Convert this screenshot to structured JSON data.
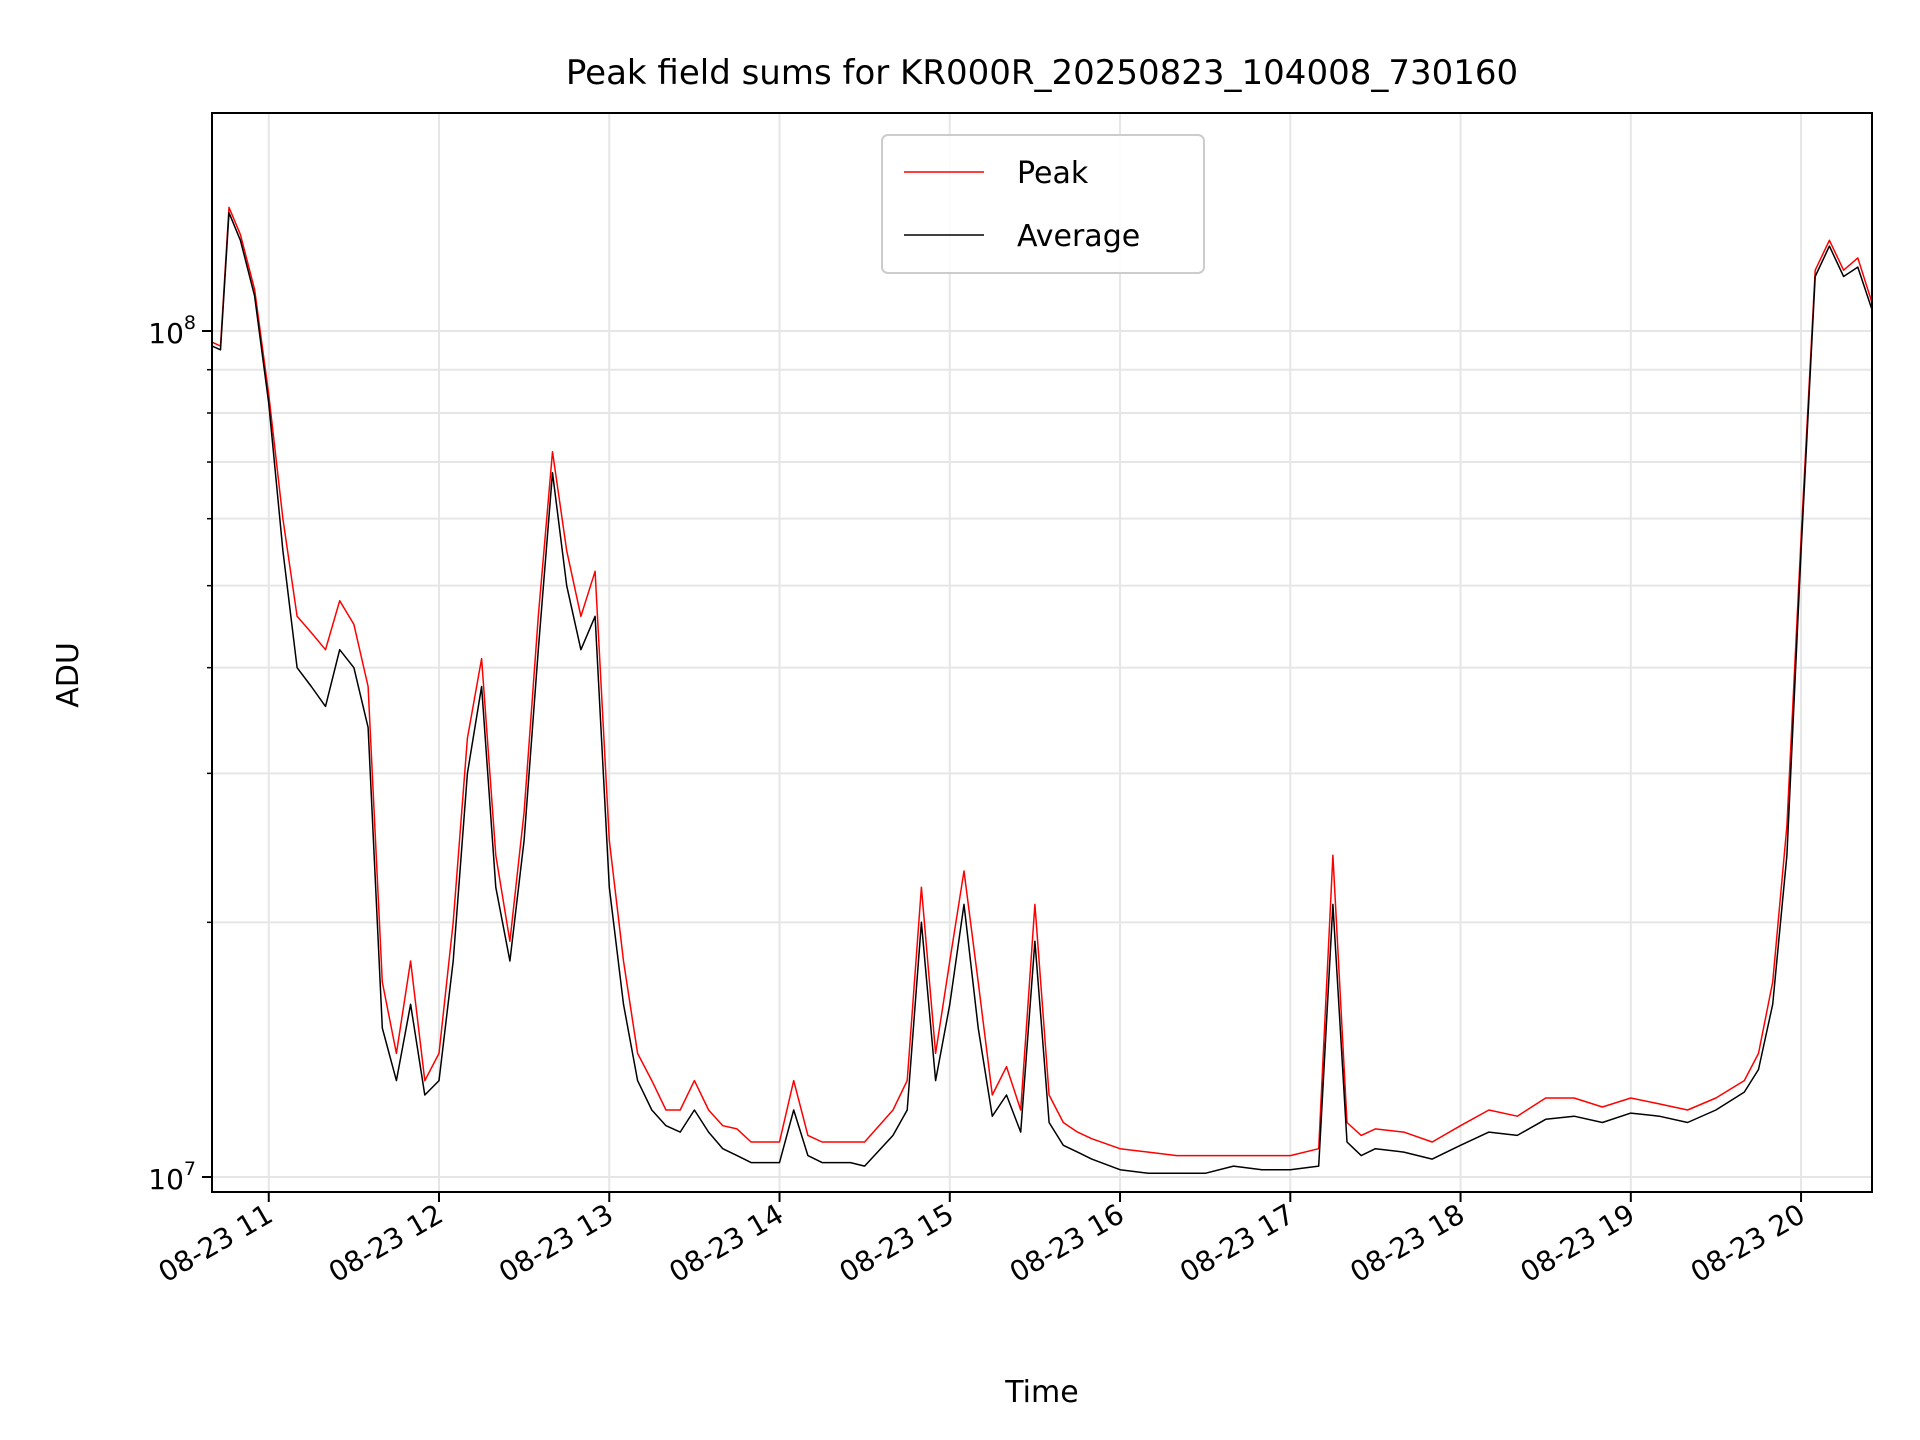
{
  "chart_data": {
    "type": "line",
    "title": "Peak field sums for KR000R_20250823_104008_730160",
    "xlabel": "Time",
    "ylabel": "ADU",
    "yscale": "log",
    "ylim": [
      9600000,
      181000000
    ],
    "xlim": [
      "2025-08-23 10:40",
      "2025-08-23 20:25"
    ],
    "x_ticks": [
      "08-23 11",
      "08-23 12",
      "08-23 13",
      "08-23 14",
      "08-23 15",
      "08-23 16",
      "08-23 17",
      "08-23 18",
      "08-23 19",
      "08-23 20"
    ],
    "y_ticks": [
      {
        "value": 10000000,
        "base": "10",
        "exp": "7"
      },
      {
        "value": 100000000,
        "base": "10",
        "exp": "8"
      }
    ],
    "grid": true,
    "legend_position": "top-center",
    "x": [
      "10:40",
      "10:43",
      "10:46",
      "10:50",
      "10:55",
      "11:00",
      "11:05",
      "11:10",
      "11:15",
      "11:20",
      "11:25",
      "11:30",
      "11:35",
      "11:40",
      "11:45",
      "11:50",
      "11:55",
      "12:00",
      "12:05",
      "12:10",
      "12:15",
      "12:20",
      "12:25",
      "12:30",
      "12:35",
      "12:40",
      "12:45",
      "12:50",
      "12:55",
      "13:00",
      "13:05",
      "13:10",
      "13:15",
      "13:20",
      "13:25",
      "13:30",
      "13:35",
      "13:40",
      "13:45",
      "13:50",
      "14:00",
      "14:05",
      "14:10",
      "14:15",
      "14:20",
      "14:25",
      "14:30",
      "14:40",
      "14:45",
      "14:50",
      "14:55",
      "15:00",
      "15:05",
      "15:10",
      "15:15",
      "15:20",
      "15:25",
      "15:30",
      "15:35",
      "15:40",
      "15:45",
      "15:50",
      "16:00",
      "16:10",
      "16:20",
      "16:30",
      "16:40",
      "16:50",
      "17:00",
      "17:10",
      "17:15",
      "17:20",
      "17:25",
      "17:30",
      "17:40",
      "17:50",
      "18:00",
      "18:10",
      "18:20",
      "18:30",
      "18:40",
      "18:50",
      "19:00",
      "19:10",
      "19:20",
      "19:30",
      "19:40",
      "19:45",
      "19:50",
      "19:55",
      "20:00",
      "20:05",
      "20:10",
      "20:15",
      "20:20",
      "20:25"
    ],
    "series": [
      {
        "name": "Peak",
        "color": "#ff0000",
        "values": [
          97,
          96,
          140,
          130,
          112,
          84,
          60,
          46,
          44,
          42,
          48,
          45,
          38,
          17,
          14,
          18,
          13,
          14,
          20,
          33,
          41,
          24,
          19,
          27,
          46,
          72,
          55,
          46,
          52,
          25,
          18,
          14,
          13,
          12,
          12,
          13,
          12,
          11.5,
          11.4,
          11,
          11,
          13,
          11.2,
          11,
          11,
          11,
          11,
          12,
          13,
          22,
          14,
          18,
          23,
          17,
          12.5,
          13.5,
          12,
          21,
          12.5,
          11.6,
          11.3,
          11.1,
          10.8,
          10.7,
          10.6,
          10.6,
          10.6,
          10.6,
          10.6,
          10.8,
          24,
          11.6,
          11.2,
          11.4,
          11.3,
          11.0,
          11.5,
          12,
          11.8,
          12.4,
          12.4,
          12.1,
          12.4,
          12.2,
          12.0,
          12.4,
          13.0,
          14.0,
          17,
          26,
          57,
          118,
          128,
          118,
          122,
          108
        ]
      },
      {
        "name": "Average",
        "color": "#000000",
        "values": [
          96,
          95,
          138,
          128,
          110,
          82,
          55,
          40,
          38,
          36,
          42,
          40,
          34,
          15,
          13,
          16,
          12.5,
          13,
          18,
          30,
          38,
          22,
          18,
          25,
          42,
          68,
          50,
          42,
          46,
          22,
          16,
          13,
          12,
          11.5,
          11.3,
          12,
          11.3,
          10.8,
          10.6,
          10.4,
          10.4,
          12,
          10.6,
          10.4,
          10.4,
          10.4,
          10.3,
          11.2,
          12,
          20,
          13,
          16,
          21,
          15,
          11.8,
          12.5,
          11.3,
          19,
          11.6,
          10.9,
          10.7,
          10.5,
          10.2,
          10.1,
          10.1,
          10.1,
          10.3,
          10.2,
          10.2,
          10.3,
          21,
          11.0,
          10.6,
          10.8,
          10.7,
          10.5,
          10.9,
          11.3,
          11.2,
          11.7,
          11.8,
          11.6,
          11.9,
          11.8,
          11.6,
          12.0,
          12.6,
          13.4,
          16,
          24,
          55,
          116,
          126,
          116,
          119,
          106
        ]
      }
    ]
  }
}
